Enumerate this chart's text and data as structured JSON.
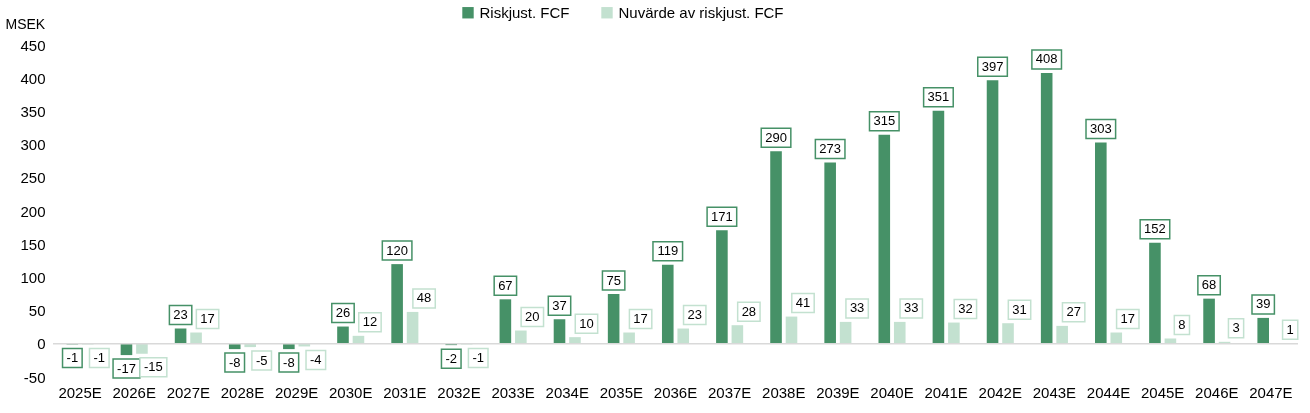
{
  "chart_data": {
    "type": "bar",
    "ylabel": "MSEK",
    "categories": [
      "2025E",
      "2026E",
      "2027E",
      "2028E",
      "2029E",
      "2030E",
      "2031E",
      "2032E",
      "2033E",
      "2034E",
      "2035E",
      "2036E",
      "2037E",
      "2038E",
      "2039E",
      "2040E",
      "2041E",
      "2042E",
      "2043E",
      "2044E",
      "2045E",
      "2046E",
      "2047E"
    ],
    "series": [
      {
        "name": "Riskjust. FCF",
        "color": "#469167",
        "values": [
          -1,
          -17,
          23,
          -8,
          -8,
          26,
          120,
          -2,
          67,
          37,
          75,
          119,
          171,
          290,
          273,
          315,
          351,
          397,
          408,
          303,
          152,
          68,
          39
        ]
      },
      {
        "name": "Nuvärde av riskjust. FCF",
        "color": "#c3e1d0",
        "values": [
          -1,
          -15,
          17,
          -5,
          -4,
          12,
          48,
          -1,
          20,
          10,
          17,
          23,
          28,
          41,
          33,
          33,
          32,
          31,
          27,
          17,
          8,
          3,
          1
        ]
      }
    ],
    "ylim": [
      -50,
      450
    ],
    "yticks": [
      -50,
      0,
      50,
      100,
      150,
      200,
      250,
      300,
      350,
      400,
      450
    ],
    "data_labels": true,
    "legend": "top",
    "ref_lines": [
      {
        "axis": "y",
        "value": 0,
        "color": "#d9d9d9"
      }
    ]
  }
}
